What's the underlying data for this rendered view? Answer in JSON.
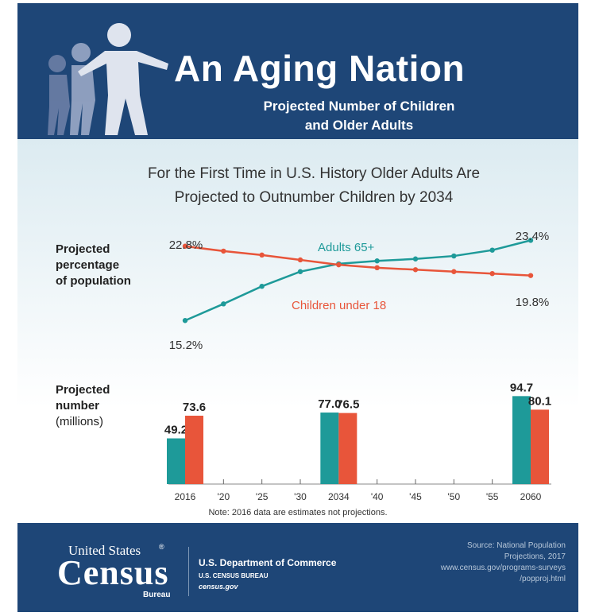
{
  "header": {
    "title": "An Aging Nation",
    "subtitle_line1": "Projected Number of Children",
    "subtitle_line2": "and Older Adults"
  },
  "headline": {
    "line1": "For the First Time in U.S. History Older Adults Are",
    "line2": "Projected to Outnumber Children by 2034"
  },
  "line_chart_label": [
    "Projected",
    "percentage",
    "of population"
  ],
  "bar_chart_label": [
    "Projected",
    "number",
    "(millions)"
  ],
  "note": "Note: 2016 data are estimates not projections.",
  "colors": {
    "adults": "#1e9a99",
    "children": "#e8553a",
    "navy": "#1e4677"
  },
  "footer": {
    "logo_line1": "United States",
    "logo_mark": "®",
    "logo_line2": "Census",
    "logo_line3": "Bureau",
    "dept_line1": "U.S. Department of Commerce",
    "dept_line2": "U.S. CENSUS BUREAU",
    "dept_line3": "census.gov",
    "source_line1": "Source: National Population",
    "source_line2": "Projections, 2017",
    "source_line3": "www.census.gov/programs-surveys",
    "source_line4": "/popproj.html"
  },
  "chart_data": [
    {
      "type": "line",
      "x": [
        2016,
        2020,
        2025,
        2030,
        2034,
        2040,
        2045,
        2050,
        2055,
        2060
      ],
      "series": [
        {
          "name": "Adults 65+",
          "color": "#1e9a99",
          "values": [
            15.2,
            16.9,
            18.7,
            20.2,
            21.0,
            21.3,
            21.5,
            21.8,
            22.4,
            23.4
          ],
          "start_label": "15.2%",
          "end_label": "23.4%"
        },
        {
          "name": "Children under 18",
          "color": "#e8553a",
          "values": [
            22.8,
            22.3,
            21.9,
            21.4,
            20.9,
            20.6,
            20.4,
            20.2,
            20.0,
            19.8
          ],
          "start_label": "22.8%",
          "end_label": "19.8%"
        }
      ],
      "ylim": [
        14,
        24
      ]
    },
    {
      "type": "bar",
      "categories": [
        "2016",
        "2034",
        "2060"
      ],
      "x_ticks": [
        "2016",
        "'20",
        "'25",
        "'30",
        "2034",
        "'40",
        "'45",
        "'50",
        "'55",
        "2060"
      ],
      "series": [
        {
          "name": "Adults 65+",
          "color": "#1e9a99",
          "values": [
            49.2,
            77.0,
            94.7
          ],
          "labels": [
            "49.2",
            "77.0",
            "94.7"
          ]
        },
        {
          "name": "Children under 18",
          "color": "#e8553a",
          "values": [
            73.6,
            76.5,
            80.1
          ],
          "labels": [
            "73.6",
            "76.5",
            "80.1"
          ]
        }
      ],
      "ylim": [
        0,
        95
      ]
    }
  ]
}
